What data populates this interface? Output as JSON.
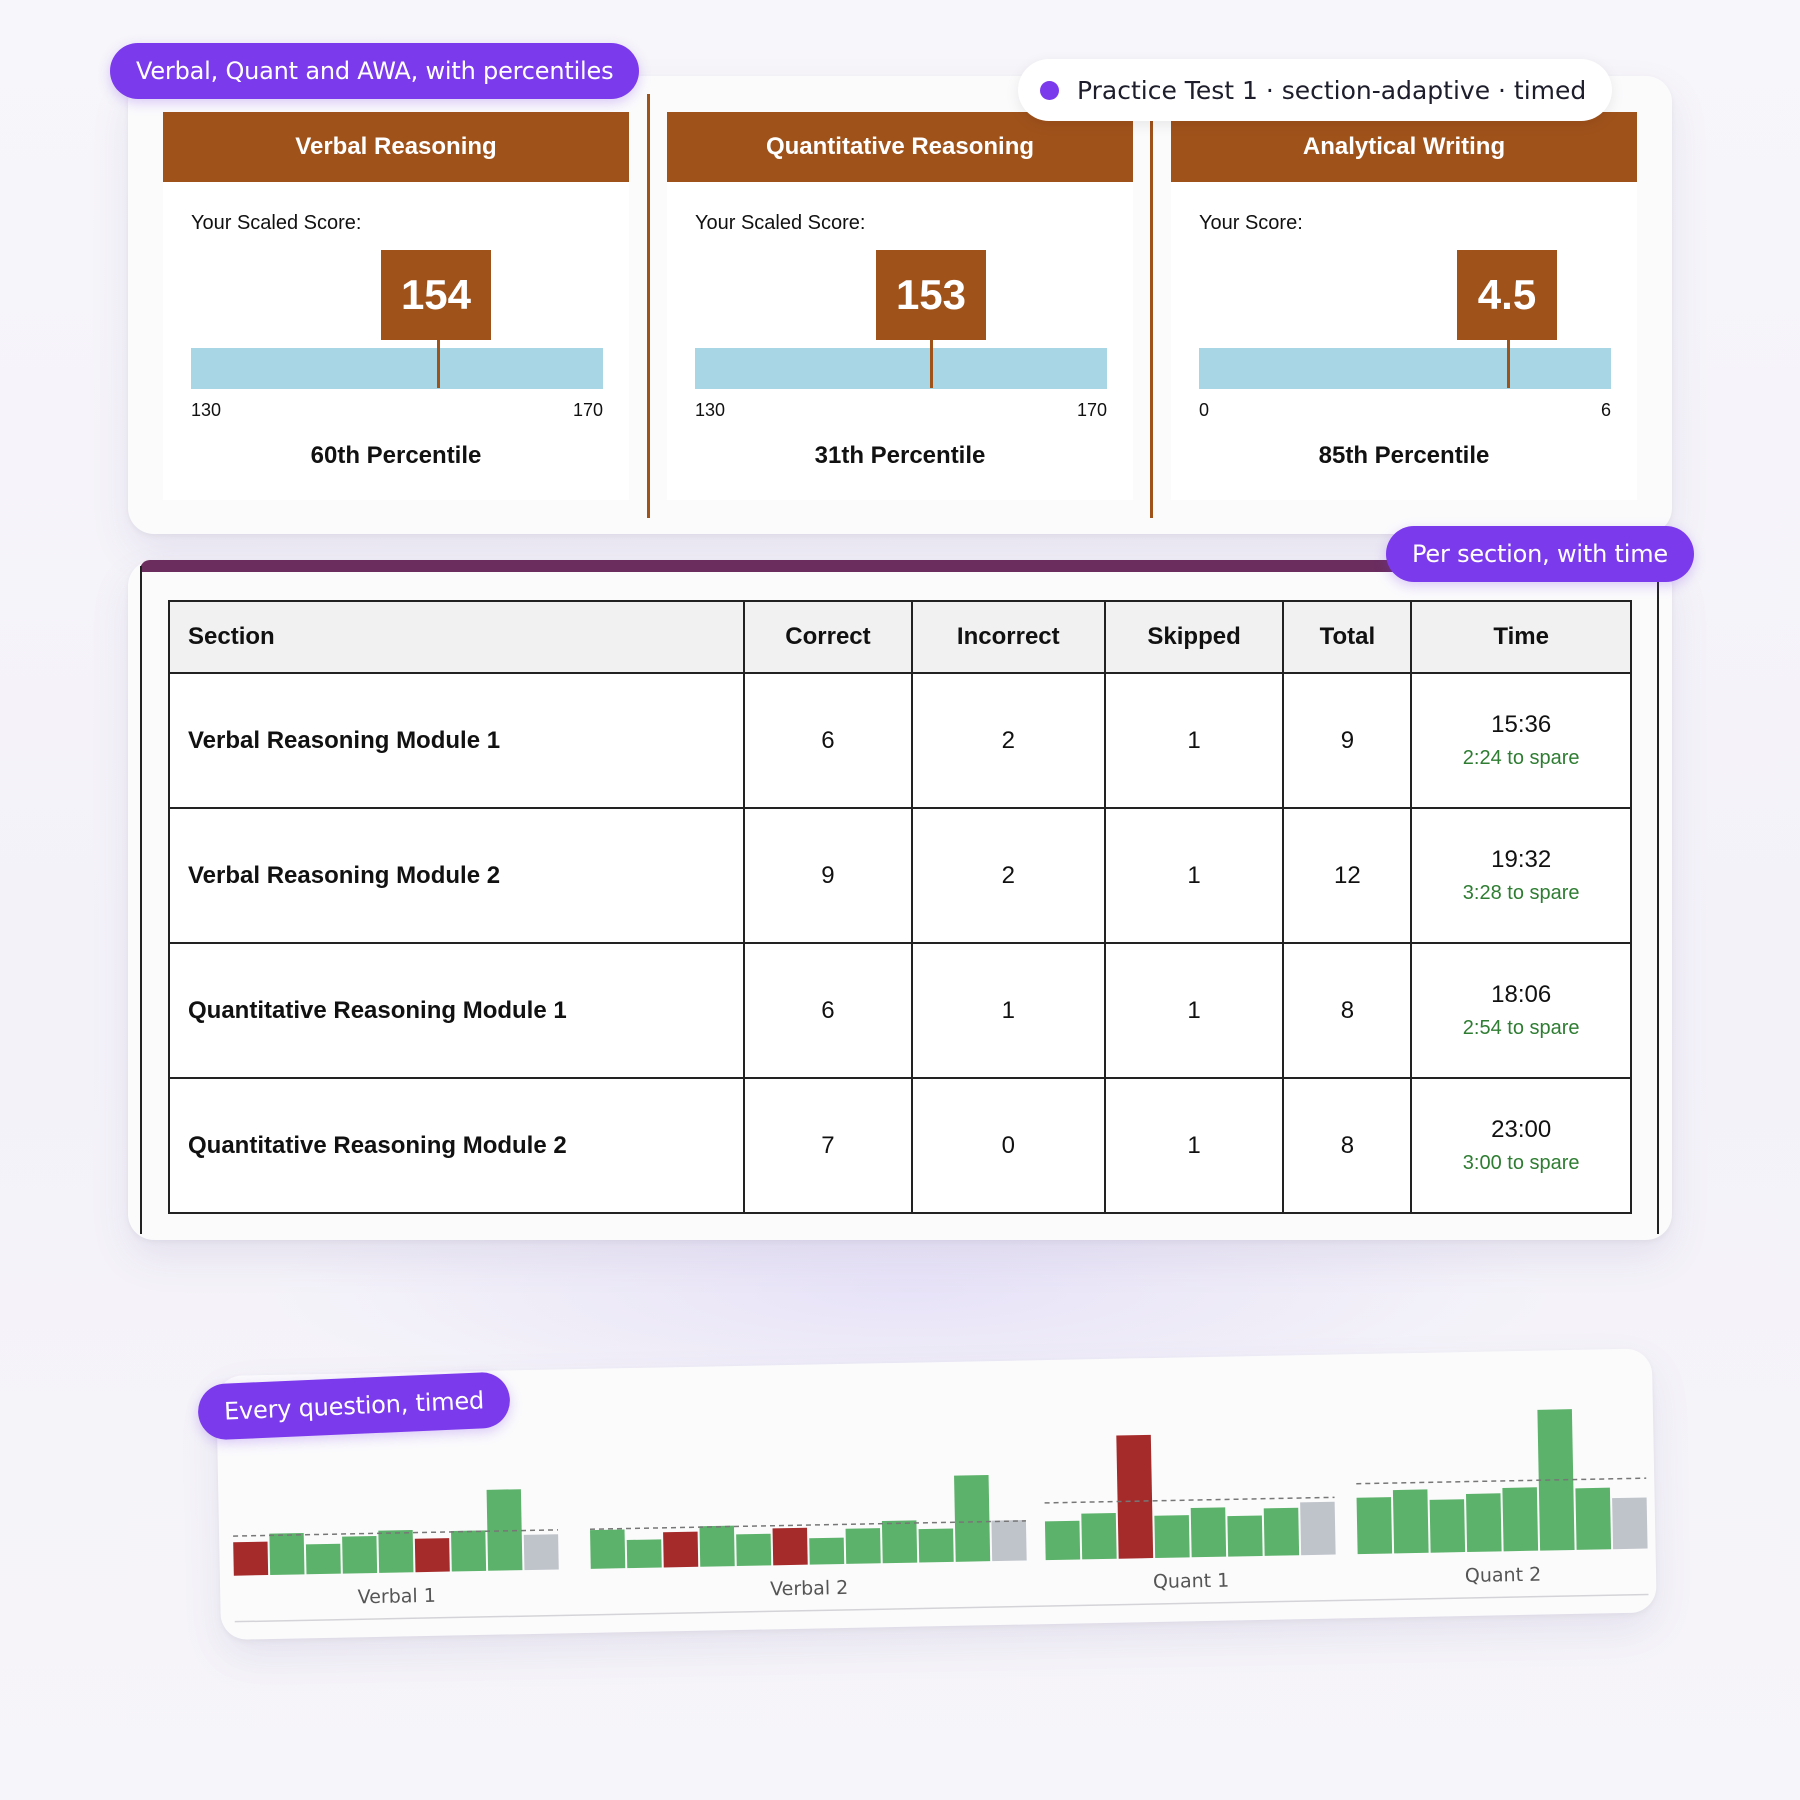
{
  "callouts": {
    "scores": "Verbal, Quant and AWA, with percentiles",
    "sections": "Per section, with time",
    "questions": "Every question, timed"
  },
  "badge": {
    "text": "Practice Test 1 · section-adaptive · timed",
    "dot_color": "#7c3aed"
  },
  "colors": {
    "accent": "#7c3aed",
    "header_brown": "#a0521b",
    "scale_blue": "#a9d6e5",
    "correct": "#5cb26a",
    "incorrect": "#a52a2a",
    "skipped": "#bfc3ca",
    "spare_green": "#2e7d32"
  },
  "scores": [
    {
      "title": "Verbal Reasoning",
      "label": "Your Scaled Score:",
      "score": "154",
      "value": 154,
      "min": 130,
      "max": 170,
      "min_label": "130",
      "max_label": "170",
      "percentile": "60th Percentile"
    },
    {
      "title": "Quantitative Reasoning",
      "label": "Your Scaled Score:",
      "score": "153",
      "value": 153,
      "min": 130,
      "max": 170,
      "min_label": "130",
      "max_label": "170",
      "percentile": "31th Percentile"
    },
    {
      "title": "Analytical Writing",
      "label": "Your Score:",
      "score": "4.5",
      "value": 4.5,
      "min": 0,
      "max": 6,
      "min_label": "0",
      "max_label": "6",
      "percentile": "85th Percentile"
    }
  ],
  "table": {
    "headers": [
      "Section",
      "Correct",
      "Incorrect",
      "Skipped",
      "Total",
      "Time"
    ],
    "rows": [
      {
        "section": "Verbal Reasoning Module 1",
        "correct": "6",
        "incorrect": "2",
        "skipped": "1",
        "total": "9",
        "time": "15:36",
        "spare": "2:24 to spare"
      },
      {
        "section": "Verbal Reasoning Module 2",
        "correct": "9",
        "incorrect": "2",
        "skipped": "1",
        "total": "12",
        "time": "19:32",
        "spare": "3:28 to spare"
      },
      {
        "section": "Quantitative Reasoning Module 1",
        "correct": "6",
        "incorrect": "1",
        "skipped": "1",
        "total": "8",
        "time": "18:06",
        "spare": "2:54 to spare"
      },
      {
        "section": "Quantitative Reasoning Module 2",
        "correct": "7",
        "incorrect": "0",
        "skipped": "1",
        "total": "8",
        "time": "23:00",
        "spare": "3:00 to spare"
      }
    ]
  },
  "chart_data": {
    "type": "bar",
    "title": "",
    "xlabel": "",
    "ylabel": "",
    "groups": [
      {
        "name": "Verbal 1",
        "average": 45,
        "bars": [
          {
            "v": 38,
            "s": "incorrect"
          },
          {
            "v": 47,
            "s": "correct"
          },
          {
            "v": 34,
            "s": "correct"
          },
          {
            "v": 42,
            "s": "correct"
          },
          {
            "v": 48,
            "s": "correct"
          },
          {
            "v": 38,
            "s": "incorrect"
          },
          {
            "v": 46,
            "s": "correct"
          },
          {
            "v": 92,
            "s": "correct"
          },
          {
            "v": 40,
            "s": "skipped"
          }
        ]
      },
      {
        "name": "Verbal 2",
        "average": 45,
        "bars": [
          {
            "v": 44,
            "s": "correct"
          },
          {
            "v": 32,
            "s": "correct"
          },
          {
            "v": 40,
            "s": "incorrect"
          },
          {
            "v": 46,
            "s": "correct"
          },
          {
            "v": 36,
            "s": "correct"
          },
          {
            "v": 42,
            "s": "incorrect"
          },
          {
            "v": 30,
            "s": "correct"
          },
          {
            "v": 40,
            "s": "correct"
          },
          {
            "v": 48,
            "s": "correct"
          },
          {
            "v": 38,
            "s": "correct"
          },
          {
            "v": 98,
            "s": "correct"
          },
          {
            "v": 46,
            "s": "skipped"
          }
        ]
      },
      {
        "name": "Quant 1",
        "average": 65,
        "bars": [
          {
            "v": 44,
            "s": "correct"
          },
          {
            "v": 52,
            "s": "correct"
          },
          {
            "v": 140,
            "s": "incorrect"
          },
          {
            "v": 48,
            "s": "correct"
          },
          {
            "v": 56,
            "s": "correct"
          },
          {
            "v": 46,
            "s": "correct"
          },
          {
            "v": 54,
            "s": "correct"
          },
          {
            "v": 60,
            "s": "skipped"
          }
        ]
      },
      {
        "name": "Quant 2",
        "average": 80,
        "bars": [
          {
            "v": 64,
            "s": "correct"
          },
          {
            "v": 72,
            "s": "correct"
          },
          {
            "v": 60,
            "s": "correct"
          },
          {
            "v": 66,
            "s": "correct"
          },
          {
            "v": 72,
            "s": "correct"
          },
          {
            "v": 160,
            "s": "correct"
          },
          {
            "v": 70,
            "s": "correct"
          },
          {
            "v": 58,
            "s": "skipped"
          }
        ]
      }
    ],
    "grid": false,
    "legend": "none"
  }
}
